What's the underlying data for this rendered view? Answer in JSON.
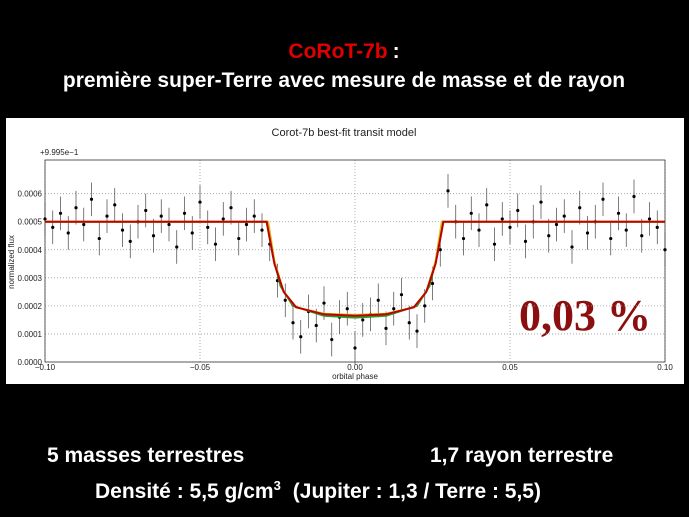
{
  "slide": {
    "title_name": "CoRoT-7b",
    "title_colon": ":",
    "subtitle": "première super-Terre avec mesure de masse et de rayon",
    "mass": "5 masses terrestres",
    "radius": "1,7 rayon terrestre",
    "density_text": "Densité : 5,5 g/cm",
    "density_exponent": "3",
    "density_compare": "(Jupiter : 1,3 / Terre : 5,5)"
  },
  "chart_data": {
    "type": "scatter",
    "title": "Corot-7b best-fit transit model",
    "x_label": "orbital phase",
    "y_label": "normalized flux",
    "y_offset_label": "+9.995e−1",
    "annotation": "0,03 %",
    "xlim": [
      -0.1,
      0.1
    ],
    "ylim": [
      0,
      0.00072
    ],
    "xticks": [
      {
        "value": -0.1,
        "label": "−0.10"
      },
      {
        "value": -0.05,
        "label": "−0.05"
      },
      {
        "value": 0,
        "label": "0.00"
      },
      {
        "value": 0.05,
        "label": "0.05"
      },
      {
        "value": 0.1,
        "label": "0.10"
      }
    ],
    "yticks": [
      {
        "value": 0,
        "label": "0.0000"
      },
      {
        "value": 0.0001,
        "label": "0.0001"
      },
      {
        "value": 0.0002,
        "label": "0.0002"
      },
      {
        "value": 0.0003,
        "label": "0.0003"
      },
      {
        "value": 0.0004,
        "label": "0.0004"
      },
      {
        "value": 0.0005,
        "label": "0.0005"
      },
      {
        "value": 0.0006,
        "label": "0.0006"
      }
    ],
    "grid": true,
    "series": [
      {
        "type": "scatter",
        "color": "#000000",
        "error": 6e-05,
        "x": [
          -0.1,
          -0.0975,
          -0.095,
          -0.0925,
          -0.09,
          -0.0875,
          -0.085,
          -0.0825,
          -0.08,
          -0.0775,
          -0.075,
          -0.0725,
          -0.07,
          -0.0675,
          -0.065,
          -0.0625,
          -0.06,
          -0.0575,
          -0.055,
          -0.0525,
          -0.05,
          -0.0475,
          -0.045,
          -0.0425,
          -0.04,
          -0.0375,
          -0.035,
          -0.0325,
          -0.03,
          -0.0275,
          -0.025,
          -0.0225,
          -0.02,
          -0.0175,
          -0.015,
          -0.0125,
          -0.01,
          -0.0075,
          -0.005,
          -0.0025,
          0,
          0.0025,
          0.005,
          0.0075,
          0.01,
          0.0125,
          0.015,
          0.0175,
          0.02,
          0.0225,
          0.025,
          0.0275,
          0.03,
          0.0325,
          0.035,
          0.0375,
          0.04,
          0.0425,
          0.045,
          0.0475,
          0.05,
          0.0525,
          0.055,
          0.0575,
          0.06,
          0.0625,
          0.065,
          0.0675,
          0.07,
          0.0725,
          0.075,
          0.0775,
          0.08,
          0.0825,
          0.085,
          0.0875,
          0.09,
          0.0925,
          0.095,
          0.0975,
          0.1
        ],
        "values": [
          0.00051,
          0.00048,
          0.00053,
          0.00046,
          0.00055,
          0.00049,
          0.00058,
          0.00044,
          0.00052,
          0.00056,
          0.00047,
          0.00043,
          0.0005,
          0.00054,
          0.00045,
          0.00052,
          0.00049,
          0.00041,
          0.00053,
          0.00046,
          0.00057,
          0.00048,
          0.00042,
          0.00051,
          0.00055,
          0.00044,
          0.00049,
          0.00052,
          0.00047,
          0.00042,
          0.00029,
          0.00022,
          0.00014,
          9e-05,
          0.00018,
          0.00013,
          0.00021,
          8e-05,
          0.00016,
          0.00019,
          5e-05,
          0.00015,
          0.00017,
          0.00022,
          0.00012,
          0.00019,
          0.00024,
          0.00014,
          0.00011,
          0.0002,
          0.00028,
          0.0004,
          0.00061,
          0.0005,
          0.00044,
          0.00053,
          0.00047,
          0.00056,
          0.00042,
          0.00051,
          0.00048,
          0.00054,
          0.00043,
          0.0005,
          0.00057,
          0.00045,
          0.00049,
          0.00052,
          0.00041,
          0.00055,
          0.00046,
          0.0005,
          0.00058,
          0.00044,
          0.00053,
          0.00047,
          0.00059,
          0.00045,
          0.00051,
          0.00048,
          0.0004
        ]
      },
      {
        "type": "line",
        "color": "#2a9a2a",
        "x": [
          -0.1,
          -0.0285,
          -0.0265,
          -0.024,
          -0.02,
          -0.01,
          0,
          0.01,
          0.02,
          0.024,
          0.0265,
          0.0285,
          0.1
        ],
        "values": [
          0.0005,
          0.0005,
          0.00038,
          0.00027,
          0.0002,
          0.000165,
          0.000158,
          0.000165,
          0.0002,
          0.00027,
          0.00038,
          0.0005,
          0.0005
        ]
      },
      {
        "type": "line",
        "color": "#d8c020",
        "x": [
          -0.1,
          -0.028,
          -0.026,
          -0.023,
          -0.019,
          -0.01,
          0,
          0.01,
          0.019,
          0.023,
          0.026,
          0.028,
          0.1
        ],
        "values": [
          0.0005,
          0.0005,
          0.00036,
          0.00025,
          0.000195,
          0.000172,
          0.000168,
          0.000172,
          0.000195,
          0.00025,
          0.00036,
          0.0005,
          0.0005
        ]
      },
      {
        "type": "line",
        "color": "#c00000",
        "x": [
          -0.1,
          -0.0285,
          -0.026,
          -0.023,
          -0.019,
          -0.01,
          0,
          0.01,
          0.019,
          0.023,
          0.026,
          0.0285,
          0.1
        ],
        "values": [
          0.0005,
          0.0005,
          0.00035,
          0.00025,
          0.000195,
          0.00017,
          0.000165,
          0.00017,
          0.000195,
          0.00025,
          0.00035,
          0.0005,
          0.0005
        ]
      }
    ]
  }
}
